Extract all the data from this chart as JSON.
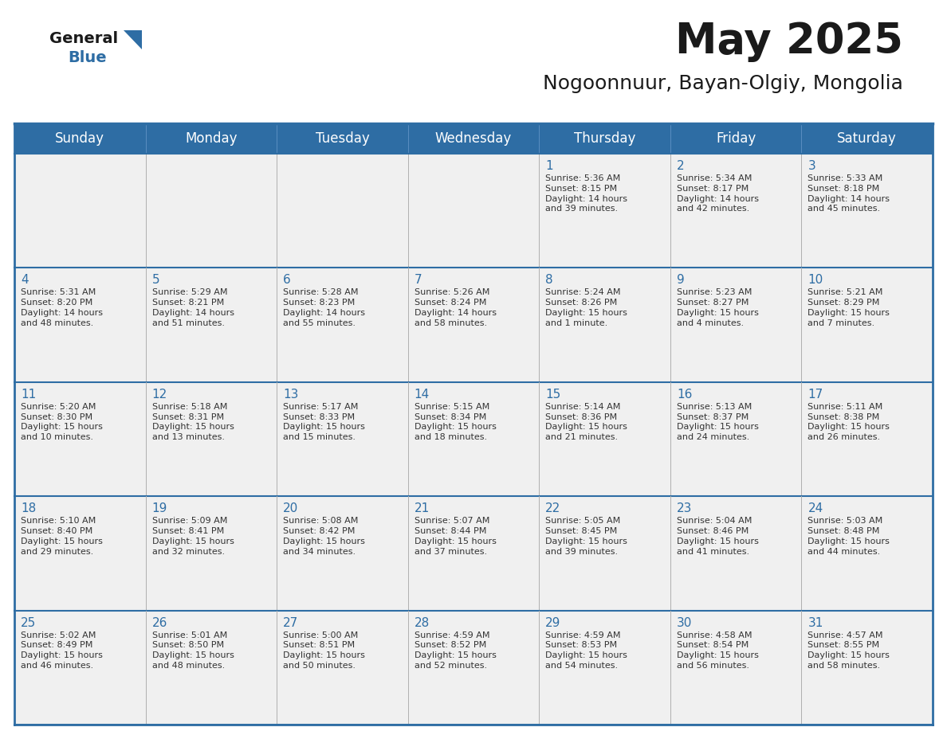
{
  "title": "May 2025",
  "subtitle": "Nogoonnuur, Bayan-Olgiy, Mongolia",
  "header_bg_color": "#2E6DA4",
  "header_text_color": "#FFFFFF",
  "cell_bg_color": "#F0F0F0",
  "title_color": "#1a1a1a",
  "subtitle_color": "#1a1a1a",
  "day_text_color": "#2E6DA4",
  "info_text_color": "#333333",
  "days_of_week": [
    "Sunday",
    "Monday",
    "Tuesday",
    "Wednesday",
    "Thursday",
    "Friday",
    "Saturday"
  ],
  "weeks": [
    [
      {
        "day": "",
        "info": ""
      },
      {
        "day": "",
        "info": ""
      },
      {
        "day": "",
        "info": ""
      },
      {
        "day": "",
        "info": ""
      },
      {
        "day": "1",
        "info": "Sunrise: 5:36 AM\nSunset: 8:15 PM\nDaylight: 14 hours\nand 39 minutes."
      },
      {
        "day": "2",
        "info": "Sunrise: 5:34 AM\nSunset: 8:17 PM\nDaylight: 14 hours\nand 42 minutes."
      },
      {
        "day": "3",
        "info": "Sunrise: 5:33 AM\nSunset: 8:18 PM\nDaylight: 14 hours\nand 45 minutes."
      }
    ],
    [
      {
        "day": "4",
        "info": "Sunrise: 5:31 AM\nSunset: 8:20 PM\nDaylight: 14 hours\nand 48 minutes."
      },
      {
        "day": "5",
        "info": "Sunrise: 5:29 AM\nSunset: 8:21 PM\nDaylight: 14 hours\nand 51 minutes."
      },
      {
        "day": "6",
        "info": "Sunrise: 5:28 AM\nSunset: 8:23 PM\nDaylight: 14 hours\nand 55 minutes."
      },
      {
        "day": "7",
        "info": "Sunrise: 5:26 AM\nSunset: 8:24 PM\nDaylight: 14 hours\nand 58 minutes."
      },
      {
        "day": "8",
        "info": "Sunrise: 5:24 AM\nSunset: 8:26 PM\nDaylight: 15 hours\nand 1 minute."
      },
      {
        "day": "9",
        "info": "Sunrise: 5:23 AM\nSunset: 8:27 PM\nDaylight: 15 hours\nand 4 minutes."
      },
      {
        "day": "10",
        "info": "Sunrise: 5:21 AM\nSunset: 8:29 PM\nDaylight: 15 hours\nand 7 minutes."
      }
    ],
    [
      {
        "day": "11",
        "info": "Sunrise: 5:20 AM\nSunset: 8:30 PM\nDaylight: 15 hours\nand 10 minutes."
      },
      {
        "day": "12",
        "info": "Sunrise: 5:18 AM\nSunset: 8:31 PM\nDaylight: 15 hours\nand 13 minutes."
      },
      {
        "day": "13",
        "info": "Sunrise: 5:17 AM\nSunset: 8:33 PM\nDaylight: 15 hours\nand 15 minutes."
      },
      {
        "day": "14",
        "info": "Sunrise: 5:15 AM\nSunset: 8:34 PM\nDaylight: 15 hours\nand 18 minutes."
      },
      {
        "day": "15",
        "info": "Sunrise: 5:14 AM\nSunset: 8:36 PM\nDaylight: 15 hours\nand 21 minutes."
      },
      {
        "day": "16",
        "info": "Sunrise: 5:13 AM\nSunset: 8:37 PM\nDaylight: 15 hours\nand 24 minutes."
      },
      {
        "day": "17",
        "info": "Sunrise: 5:11 AM\nSunset: 8:38 PM\nDaylight: 15 hours\nand 26 minutes."
      }
    ],
    [
      {
        "day": "18",
        "info": "Sunrise: 5:10 AM\nSunset: 8:40 PM\nDaylight: 15 hours\nand 29 minutes."
      },
      {
        "day": "19",
        "info": "Sunrise: 5:09 AM\nSunset: 8:41 PM\nDaylight: 15 hours\nand 32 minutes."
      },
      {
        "day": "20",
        "info": "Sunrise: 5:08 AM\nSunset: 8:42 PM\nDaylight: 15 hours\nand 34 minutes."
      },
      {
        "day": "21",
        "info": "Sunrise: 5:07 AM\nSunset: 8:44 PM\nDaylight: 15 hours\nand 37 minutes."
      },
      {
        "day": "22",
        "info": "Sunrise: 5:05 AM\nSunset: 8:45 PM\nDaylight: 15 hours\nand 39 minutes."
      },
      {
        "day": "23",
        "info": "Sunrise: 5:04 AM\nSunset: 8:46 PM\nDaylight: 15 hours\nand 41 minutes."
      },
      {
        "day": "24",
        "info": "Sunrise: 5:03 AM\nSunset: 8:48 PM\nDaylight: 15 hours\nand 44 minutes."
      }
    ],
    [
      {
        "day": "25",
        "info": "Sunrise: 5:02 AM\nSunset: 8:49 PM\nDaylight: 15 hours\nand 46 minutes."
      },
      {
        "day": "26",
        "info": "Sunrise: 5:01 AM\nSunset: 8:50 PM\nDaylight: 15 hours\nand 48 minutes."
      },
      {
        "day": "27",
        "info": "Sunrise: 5:00 AM\nSunset: 8:51 PM\nDaylight: 15 hours\nand 50 minutes."
      },
      {
        "day": "28",
        "info": "Sunrise: 4:59 AM\nSunset: 8:52 PM\nDaylight: 15 hours\nand 52 minutes."
      },
      {
        "day": "29",
        "info": "Sunrise: 4:59 AM\nSunset: 8:53 PM\nDaylight: 15 hours\nand 54 minutes."
      },
      {
        "day": "30",
        "info": "Sunrise: 4:58 AM\nSunset: 8:54 PM\nDaylight: 15 hours\nand 56 minutes."
      },
      {
        "day": "31",
        "info": "Sunrise: 4:57 AM\nSunset: 8:55 PM\nDaylight: 15 hours\nand 58 minutes."
      }
    ]
  ],
  "logo_text_general": "General",
  "logo_text_blue": "Blue",
  "border_color": "#2E6DA4",
  "grid_color": "#B0B0B0",
  "fig_width": 11.88,
  "fig_height": 9.18,
  "dpi": 100
}
